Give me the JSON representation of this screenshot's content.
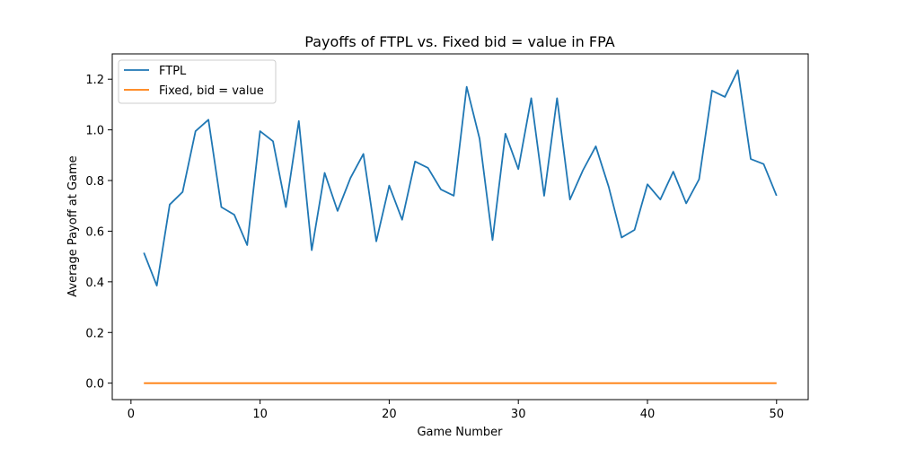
{
  "chart_data": {
    "type": "line",
    "title": "Payoffs of FTPL vs. Fixed bid = value in FPA",
    "xlabel": "Game Number",
    "ylabel": "Average Payoff at Game",
    "xlim": [
      -1.45,
      52.45
    ],
    "ylim": [
      -0.065,
      1.3
    ],
    "xticks": [
      0,
      10,
      20,
      30,
      40,
      50
    ],
    "yticks": [
      0.0,
      0.2,
      0.4,
      0.6,
      0.8,
      1.0,
      1.2
    ],
    "xtick_labels": [
      "0",
      "10",
      "20",
      "30",
      "40",
      "50"
    ],
    "ytick_labels": [
      "0.0",
      "0.2",
      "0.4",
      "0.6",
      "0.8",
      "1.0",
      "1.2"
    ],
    "grid": false,
    "legend_position": "top-left",
    "x": [
      1,
      2,
      3,
      4,
      5,
      6,
      7,
      8,
      9,
      10,
      11,
      12,
      13,
      14,
      15,
      16,
      17,
      18,
      19,
      20,
      21,
      22,
      23,
      24,
      25,
      26,
      27,
      28,
      29,
      30,
      31,
      32,
      33,
      34,
      35,
      36,
      37,
      38,
      39,
      40,
      41,
      42,
      43,
      44,
      45,
      46,
      47,
      48,
      49,
      50
    ],
    "series": [
      {
        "name": "FTPL",
        "color": "#1f77b4",
        "values": [
          0.515,
          0.385,
          0.705,
          0.755,
          0.995,
          1.04,
          0.695,
          0.665,
          0.545,
          0.995,
          0.955,
          0.695,
          1.035,
          0.525,
          0.83,
          0.68,
          0.81,
          0.905,
          0.56,
          0.78,
          0.645,
          0.875,
          0.85,
          0.765,
          0.74,
          1.17,
          0.965,
          0.565,
          0.985,
          0.845,
          1.125,
          0.74,
          1.125,
          0.725,
          0.84,
          0.935,
          0.775,
          0.575,
          0.605,
          0.785,
          0.725,
          0.835,
          0.71,
          0.805,
          1.155,
          1.13,
          1.235,
          0.885,
          0.865,
          0.74
        ]
      },
      {
        "name": "Fixed, bid = value",
        "color": "#ff7f0e",
        "values": [
          0,
          0,
          0,
          0,
          0,
          0,
          0,
          0,
          0,
          0,
          0,
          0,
          0,
          0,
          0,
          0,
          0,
          0,
          0,
          0,
          0,
          0,
          0,
          0,
          0,
          0,
          0,
          0,
          0,
          0,
          0,
          0,
          0,
          0,
          0,
          0,
          0,
          0,
          0,
          0,
          0,
          0,
          0,
          0,
          0,
          0,
          0,
          0,
          0,
          0
        ]
      }
    ]
  }
}
